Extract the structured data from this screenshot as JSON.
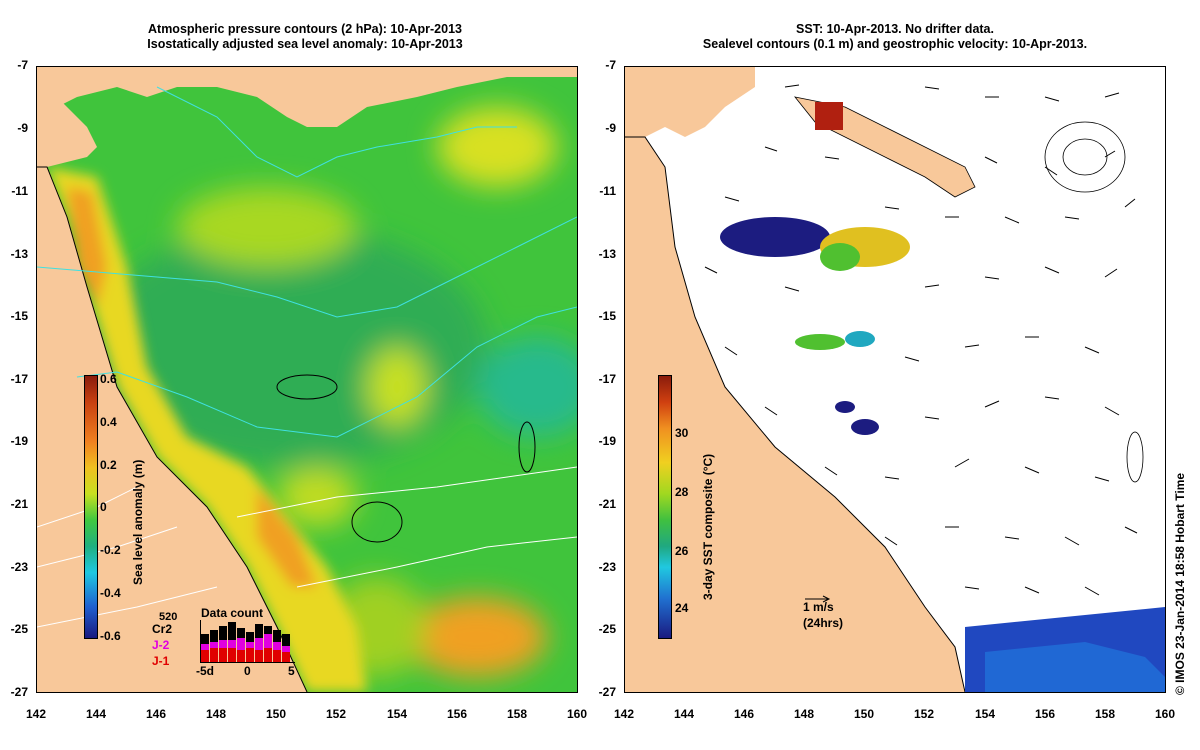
{
  "left_panel": {
    "title_line1": "Atmospheric pressure contours (2 hPa): 10-Apr-2013",
    "title_line2": "Isostatically adjusted sea level anomaly: 10-Apr-2013",
    "colorbar_label": "Sea level anomaly (m)",
    "colorbar_ticks": [
      "0.6",
      "0.4",
      "0.2",
      "0",
      "-0.2",
      "-0.4",
      "-0.6"
    ],
    "inset": {
      "title": "Data count",
      "count": "520",
      "satellites": [
        {
          "name": "Cr2",
          "color": "#000000"
        },
        {
          "name": "J-2",
          "color": "#e000e0"
        },
        {
          "name": "J-1",
          "color": "#e00000"
        }
      ],
      "x_ticks": [
        "-5d",
        "0",
        "5"
      ]
    }
  },
  "right_panel": {
    "title_line1": "SST: 10-Apr-2013. No drifter data.",
    "title_line2": "Sealevel contours (0.1 m) and geostrophic velocity: 10-Apr-2013.",
    "colorbar_label": "3-day SST composite (°C)",
    "colorbar_ticks": [
      "30",
      "28",
      "26",
      "24"
    ],
    "scale_arrow_label": "1 m/s",
    "scale_arrow_sublabel": "(24hrs)"
  },
  "y_ticks": [
    "-7",
    "-9",
    "-11",
    "-13",
    "-15",
    "-17",
    "-19",
    "-21",
    "-23",
    "-25",
    "-27"
  ],
  "x_ticks": [
    "142",
    "144",
    "146",
    "148",
    "150",
    "152",
    "154",
    "156",
    "158",
    "160"
  ],
  "credit": "© IMOS 23-Jan-2014 18:58 Hobart Time",
  "colors": {
    "land": "#f8c89a",
    "ocean_green": "#3cc83c",
    "anomaly_yellow": "#d8e020",
    "anomaly_orange": "#f0a020",
    "sst_white": "#ffffff"
  }
}
